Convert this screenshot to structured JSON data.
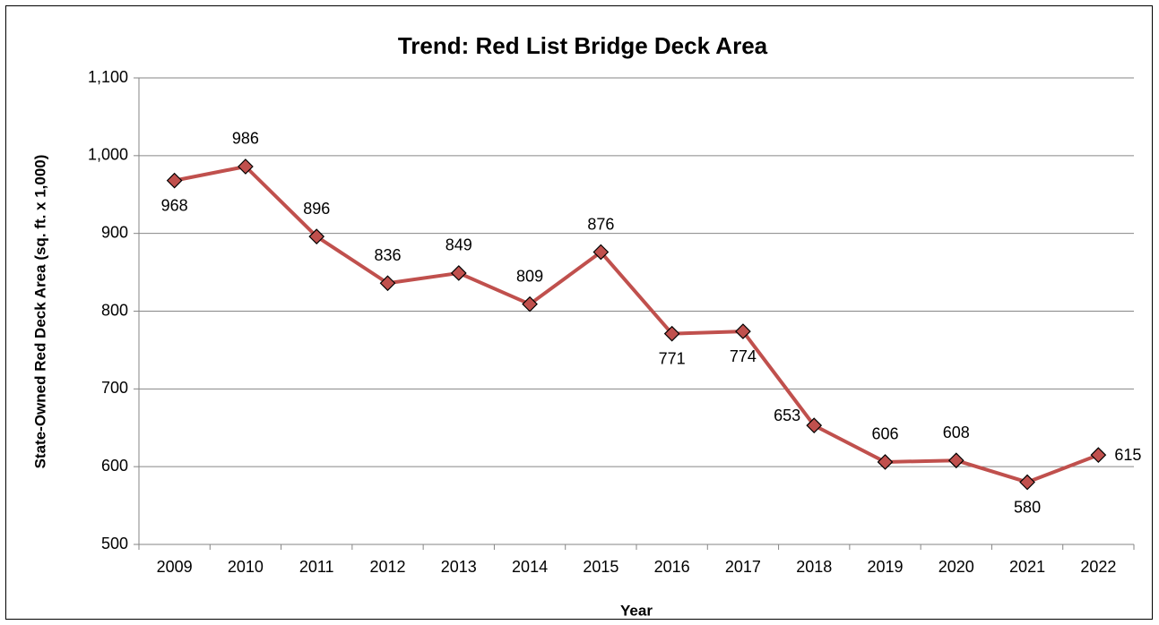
{
  "chart_data": {
    "type": "line",
    "title": "Trend: Red List Bridge Deck Area",
    "x_label": "Year",
    "y_label": "State-Owned Red Deck Area (sq. ft. x 1,000)",
    "categories": [
      "2009",
      "2010",
      "2011",
      "2012",
      "2013",
      "2014",
      "2015",
      "2016",
      "2017",
      "2018",
      "2019",
      "2020",
      "2021",
      "2022"
    ],
    "values": [
      968,
      986,
      896,
      836,
      849,
      809,
      876,
      771,
      774,
      653,
      606,
      608,
      580,
      615
    ],
    "color": "#c0504d",
    "ylim": [
      500,
      1100
    ],
    "yticks": [
      500,
      600,
      700,
      800,
      900,
      {
        "value": 1000,
        "label": "1,000"
      },
      {
        "value": 1100,
        "label": "1,100"
      }
    ],
    "grid": true
  }
}
